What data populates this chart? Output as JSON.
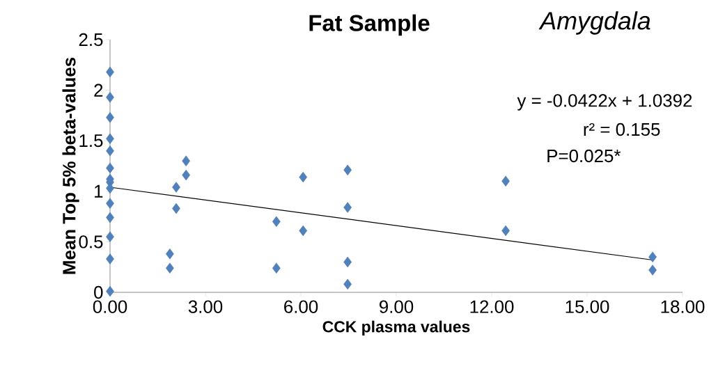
{
  "chart_data": {
    "type": "scatter",
    "title": "Fat Sample",
    "subtitle": "Amygdala",
    "xlabel": "CCK plasma values",
    "ylabel": "Mean Top 5% beta-values",
    "annotations": [
      "y = -0.0422x + 1.0392",
      "r² = 0.155",
      "P=0.025*"
    ],
    "marker": "diamond",
    "xlim": [
      0,
      18
    ],
    "xticks": [
      {
        "value": 0,
        "label": "0.00"
      },
      {
        "value": 3,
        "label": "3.00"
      },
      {
        "value": 6,
        "label": "6.00"
      },
      {
        "value": 9,
        "label": "9.00"
      },
      {
        "value": 12,
        "label": "12.00"
      },
      {
        "value": 15,
        "label": "15.00"
      },
      {
        "value": 18,
        "label": "18.00"
      }
    ],
    "ylim": [
      0,
      2.5
    ],
    "yticks": [
      0,
      0.5,
      1,
      1.5,
      2,
      2.5
    ],
    "series": [
      {
        "color": "#4f81bd",
        "x": [
          0,
          0,
          0,
          0,
          0,
          0,
          0,
          0,
          0,
          0,
          0,
          0,
          0,
          0,
          1.88,
          1.88,
          2.08,
          2.08,
          2.39,
          2.39,
          5.23,
          5.23,
          6.07,
          6.07,
          7.47,
          7.47,
          7.47,
          7.47,
          12.44,
          12.44,
          17.06,
          17.06
        ],
        "values": [
          2.18,
          1.93,
          1.73,
          1.52,
          1.4,
          1.23,
          1.12,
          1.09,
          1.03,
          0.88,
          0.74,
          0.55,
          0.33,
          0.01,
          0.38,
          0.24,
          1.04,
          0.83,
          1.3,
          1.16,
          0.7,
          0.24,
          1.14,
          0.61,
          1.21,
          0.84,
          0.3,
          0.08,
          1.1,
          0.61,
          0.35,
          0.22
        ]
      },
      {
        "type": "line",
        "color": "#000000",
        "marker": "none",
        "x": [
          0,
          17.06
        ],
        "values": [
          1.04,
          0.32
        ]
      }
    ]
  }
}
